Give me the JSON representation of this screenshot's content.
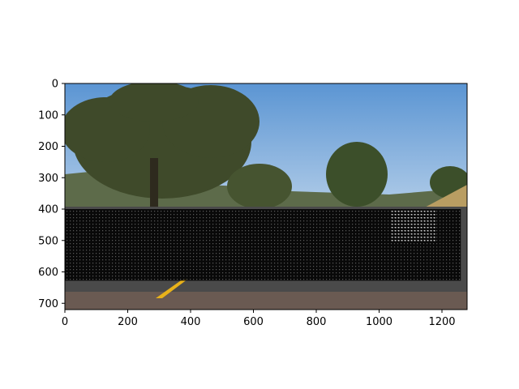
{
  "chart_data": {
    "type": "image",
    "title": "",
    "xlabel": "",
    "ylabel": "",
    "xlim": [
      0,
      1280
    ],
    "ylim": [
      720,
      0
    ],
    "xticks": [
      0,
      200,
      400,
      600,
      800,
      1000,
      1200
    ],
    "yticks": [
      0,
      100,
      200,
      300,
      400,
      500,
      600,
      700
    ],
    "grid": false,
    "image_content": "road-scene-photo",
    "overlay": {
      "type": "sliding-window-grid",
      "x_range": [
        0,
        1260
      ],
      "y_range": [
        400,
        628
      ],
      "box_color": "#000000",
      "highlight_color": "#ffffff"
    },
    "colors": {
      "sky": "#6fa3d8",
      "road": "#3a3a3a",
      "lane_marking": "#e8b21a",
      "tree": "#4a5a30"
    }
  }
}
